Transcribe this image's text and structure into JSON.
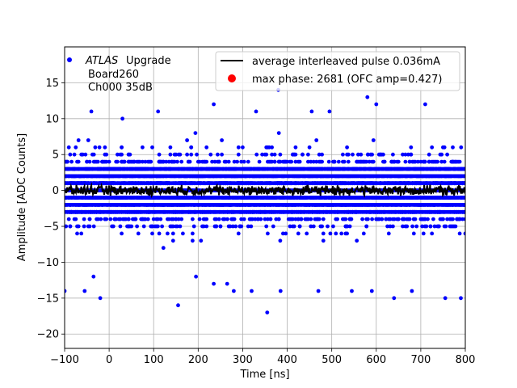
{
  "chart_data": {
    "type": "scatter",
    "xlabel": "Time [ns]",
    "ylabel": "Amplitude [ADC Counts]",
    "xlim": [
      -100,
      800
    ],
    "ylim": [
      -22,
      20
    ],
    "x_ticks": [
      -100,
      0,
      100,
      200,
      300,
      400,
      500,
      600,
      700,
      800
    ],
    "y_ticks": [
      -20,
      -15,
      -10,
      -5,
      0,
      5,
      10,
      15
    ],
    "grid": true,
    "colors": {
      "samples": "#0000ff",
      "average": "#000000",
      "max_phase": "#ff0000"
    },
    "annotation": {
      "prefix_italic": "ATLAS",
      "lines": [
        "Upgrade",
        "Board260",
        "Ch000 35dB"
      ]
    },
    "legend": {
      "placement": "upper right",
      "entries": [
        {
          "label": "average interleaved pulse 0.036mA",
          "marker": "line",
          "color": "#000000"
        },
        {
          "label": "max phase: 2681 (OFC amp=0.427)",
          "marker": "dot",
          "color": "#ff0000"
        }
      ]
    },
    "series": [
      {
        "kind": "scatter",
        "time_step_ns": 3.125,
        "amplitude_range": [
          -17,
          14
        ],
        "core_band": [
          -10,
          10
        ],
        "outliers": [
          {
            "x": -100,
            "y": -14
          },
          {
            "x": -55,
            "y": -14
          },
          {
            "x": -35,
            "y": -12
          },
          {
            "x": -20,
            "y": -15
          },
          {
            "x": 155,
            "y": -16
          },
          {
            "x": 195,
            "y": -12
          },
          {
            "x": 235,
            "y": -13
          },
          {
            "x": 265,
            "y": -13
          },
          {
            "x": 280,
            "y": -14
          },
          {
            "x": 320,
            "y": -14
          },
          {
            "x": 355,
            "y": -17
          },
          {
            "x": 385,
            "y": -14
          },
          {
            "x": 470,
            "y": -14
          },
          {
            "x": 545,
            "y": -14
          },
          {
            "x": 590,
            "y": -14
          },
          {
            "x": 640,
            "y": -15
          },
          {
            "x": 680,
            "y": -14
          },
          {
            "x": 755,
            "y": -15
          },
          {
            "x": 790,
            "y": -15
          },
          {
            "x": 235,
            "y": 12
          },
          {
            "x": 380,
            "y": 14
          },
          {
            "x": 455,
            "y": 11
          },
          {
            "x": 495,
            "y": 11
          },
          {
            "x": 580,
            "y": 13
          },
          {
            "x": 710,
            "y": 12
          },
          {
            "x": -40,
            "y": 11
          },
          {
            "x": 110,
            "y": 11
          },
          {
            "x": 600,
            "y": 12
          },
          {
            "x": 330,
            "y": 11
          },
          {
            "x": 30,
            "y": 10
          }
        ]
      },
      {
        "kind": "line",
        "name": "average interleaved pulse 0.036mA",
        "level": 0,
        "amplitude_range": [
          -1,
          1
        ]
      }
    ]
  }
}
